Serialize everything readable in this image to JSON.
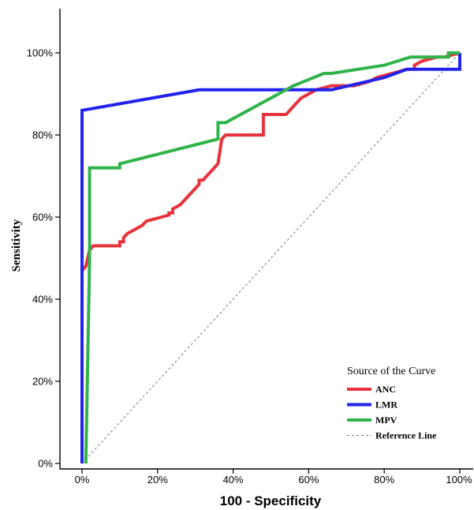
{
  "chart_data": {
    "type": "line",
    "xlabel": "100 - Specificity",
    "ylabel": "Sensitivity",
    "xlim": [
      0,
      100
    ],
    "ylim": [
      0,
      100
    ],
    "x_ticks": [
      "0%",
      "20%",
      "40%",
      "60%",
      "80%",
      "100%"
    ],
    "y_ticks": [
      "0%",
      "20%",
      "40%",
      "60%",
      "80%",
      "100%"
    ],
    "grid": false,
    "legend": {
      "title": "Source of the Curve",
      "placement": "bottom-right",
      "entries": [
        "ANC",
        "LMR",
        "MPV",
        "Reference Line"
      ]
    },
    "series": [
      {
        "name": "ANC",
        "color": "#e8323c",
        "x": [
          0,
          0,
          1,
          2,
          3,
          5,
          8,
          10,
          10,
          11,
          11,
          12,
          14,
          16,
          17,
          19,
          21,
          23,
          23,
          24,
          24,
          25,
          26,
          27,
          28,
          29,
          30,
          31,
          31,
          32,
          33,
          34,
          35,
          36,
          37,
          38,
          40,
          42,
          44,
          46,
          48,
          48,
          50,
          52,
          54,
          55,
          56,
          57,
          58,
          60,
          62,
          64,
          66,
          68,
          70,
          72,
          74,
          76,
          78,
          80,
          82,
          84,
          86,
          88,
          88,
          90,
          92,
          94,
          96,
          98,
          100,
          100
        ],
        "y": [
          46,
          47,
          48,
          52,
          53,
          53,
          53,
          53,
          54,
          54,
          55,
          56,
          57,
          58,
          59,
          59.5,
          60,
          60.5,
          61,
          61,
          62,
          62.5,
          63,
          64,
          65,
          66,
          67,
          68,
          69,
          69,
          70,
          71,
          72,
          73,
          79,
          80,
          80,
          80,
          80,
          80,
          80,
          85,
          85,
          85,
          85,
          86,
          87,
          88,
          89,
          90,
          91,
          91.5,
          92,
          92,
          92,
          92,
          92.5,
          93,
          94,
          94.5,
          95,
          95.5,
          96,
          96,
          97,
          98,
          98.5,
          99,
          99,
          99.5,
          100,
          100
        ]
      },
      {
        "name": "LMR",
        "color": "#2222ee",
        "x": [
          0,
          0,
          31,
          66,
          80,
          86,
          86,
          100,
          100
        ],
        "y": [
          0,
          86,
          91,
          91,
          94,
          96,
          96,
          96,
          100
        ]
      },
      {
        "name": "MPV",
        "color": "#2fb34a",
        "x": [
          1,
          2,
          2,
          10,
          10,
          36,
          36,
          38,
          56,
          64,
          66,
          80,
          87,
          90,
          97,
          97,
          100
        ],
        "y": [
          0,
          50,
          72,
          72,
          73,
          79,
          83,
          83,
          92,
          95,
          95,
          97,
          99,
          99,
          99,
          100,
          100
        ]
      },
      {
        "name": "Reference Line",
        "color": "#777777",
        "dashed": true,
        "x": [
          0,
          100
        ],
        "y": [
          0,
          100
        ]
      }
    ]
  }
}
